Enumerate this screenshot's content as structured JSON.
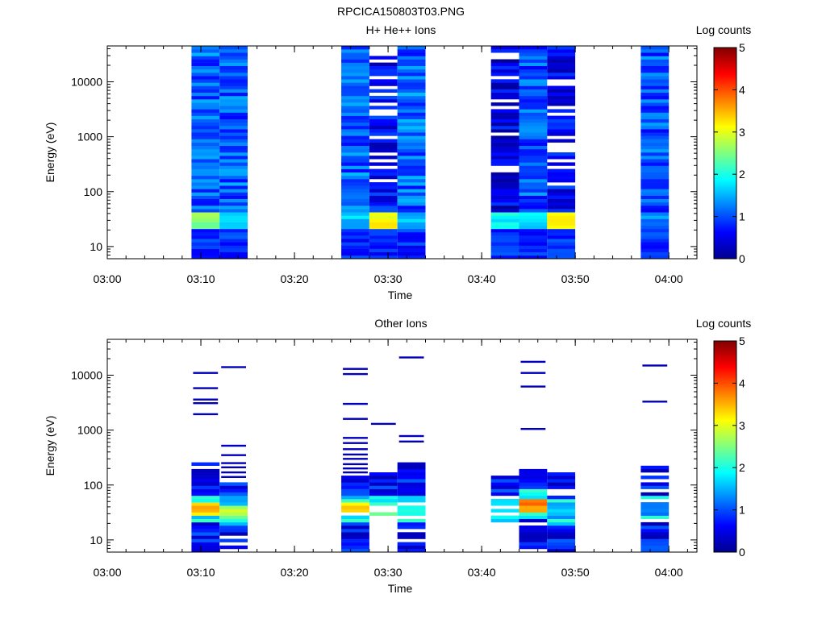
{
  "figure_title": "RPCICA150803T03.PNG",
  "chart_data": [
    {
      "type": "heatmap",
      "title": "H+ He++ Ions",
      "xlabel": "Time",
      "ylabel": "Energy (eV)",
      "x_ticks": [
        "03:00",
        "03:10",
        "03:20",
        "03:30",
        "03:40",
        "03:50",
        "04:00"
      ],
      "y_ticks": [
        "10",
        "100",
        "1000",
        "10000"
      ],
      "y_scale": "log",
      "ylim": [
        6,
        45000
      ],
      "xlim": [
        "03:00",
        "04:03"
      ],
      "colorbar": {
        "label": "Log counts",
        "range": [
          0,
          5
        ],
        "ticks": [
          "0",
          "1",
          "2",
          "3",
          "4",
          "5"
        ]
      },
      "columns": [
        {
          "start": "03:09",
          "end": "03:12",
          "profile": "bright_low",
          "low_peak": 2.6,
          "gaps": 0,
          "seed": 11,
          "base": 1.1
        },
        {
          "start": "03:12",
          "end": "03:15",
          "profile": "bright_low",
          "low_peak": 1.6,
          "gaps": 0,
          "seed": 12,
          "base": 1.1
        },
        {
          "start": "03:25",
          "end": "03:28",
          "profile": "bright_low",
          "low_peak": 1.6,
          "gaps": 0,
          "seed": 13,
          "base": 1.1
        },
        {
          "start": "03:28",
          "end": "03:31",
          "profile": "bright_low",
          "low_peak": 3.2,
          "gaps": 12,
          "seed": 14,
          "base": 0.6
        },
        {
          "start": "03:31",
          "end": "03:34",
          "profile": "bright_low",
          "low_peak": 1.6,
          "gaps": 0,
          "seed": 15,
          "base": 1.1
        },
        {
          "start": "03:41",
          "end": "03:44",
          "profile": "bright_low",
          "low_peak": 1.9,
          "gaps": 9,
          "seed": 16,
          "base": 0.45
        },
        {
          "start": "03:44",
          "end": "03:47",
          "profile": "bright_low",
          "low_peak": 1.8,
          "gaps": 0,
          "seed": 17,
          "base": 1.0
        },
        {
          "start": "03:47",
          "end": "03:50",
          "profile": "bright_low",
          "low_peak": 3.1,
          "gaps": 10,
          "seed": 18,
          "base": 0.6
        },
        {
          "start": "03:57",
          "end": "04:00",
          "profile": "bright_low",
          "low_peak": 1.3,
          "gaps": 0,
          "seed": 19,
          "base": 1.0
        }
      ]
    },
    {
      "type": "heatmap",
      "title": "Other Ions",
      "xlabel": "Time",
      "ylabel": "Energy (eV)",
      "x_ticks": [
        "03:00",
        "03:10",
        "03:20",
        "03:30",
        "03:40",
        "03:50",
        "04:00"
      ],
      "y_ticks": [
        "10",
        "100",
        "1000",
        "10000"
      ],
      "y_scale": "log",
      "ylim": [
        6,
        45000
      ],
      "xlim": [
        "03:00",
        "04:03"
      ],
      "colorbar": {
        "label": "Log counts",
        "range": [
          0,
          5
        ],
        "ticks": [
          "0",
          "1",
          "2",
          "3",
          "4",
          "5"
        ]
      },
      "columns": [
        {
          "start": "03:09",
          "end": "03:12",
          "fill_top": 260,
          "fill_bottom": 6,
          "peak": 3.7,
          "peak_e": 38,
          "sparse": [
            1950,
            3100,
            3600,
            5800,
            11000
          ],
          "seed": 21
        },
        {
          "start": "03:12",
          "end": "03:15",
          "fill_top": 120,
          "fill_bottom": 6,
          "peak": 3.0,
          "peak_e": 34,
          "sparse": [
            140,
            170,
            210,
            250,
            350,
            520,
            14000
          ],
          "seed": 22
        },
        {
          "start": "03:25",
          "end": "03:28",
          "fill_top": 140,
          "fill_bottom": 6,
          "peak": 3.4,
          "peak_e": 38,
          "sparse": [
            170,
            200,
            240,
            300,
            360,
            450,
            580,
            720,
            1600,
            3000,
            10500,
            13000
          ],
          "seed": 23
        },
        {
          "start": "03:28",
          "end": "03:31",
          "fill_top": 160,
          "fill_bottom": 28,
          "peak": 2.7,
          "peak_e": 36,
          "sparse": [
            1300
          ],
          "seed": 24
        },
        {
          "start": "03:31",
          "end": "03:34",
          "fill_top": 260,
          "fill_bottom": 6,
          "peak": 2.2,
          "peak_e": 36,
          "sparse": [
            620,
            780,
            21000
          ],
          "seed": 25
        },
        {
          "start": "03:41",
          "end": "03:44",
          "fill_top": 140,
          "fill_bottom": 20,
          "peak": 2.1,
          "peak_e": 30,
          "sparse": [],
          "seed": 26
        },
        {
          "start": "03:44",
          "end": "03:47",
          "fill_top": 190,
          "fill_bottom": 6,
          "peak": 3.9,
          "peak_e": 45,
          "sparse": [
            1050,
            6200,
            11000,
            17500
          ],
          "seed": 27
        },
        {
          "start": "03:47",
          "end": "03:50",
          "fill_top": 190,
          "fill_bottom": 6,
          "peak": 1.8,
          "peak_e": 32,
          "sparse": [],
          "seed": 28
        },
        {
          "start": "03:57",
          "end": "04:00",
          "fill_top": 230,
          "fill_bottom": 6,
          "peak": 1.5,
          "peak_e": 36,
          "sparse": [
            3300,
            15000
          ],
          "seed": 29
        }
      ]
    }
  ]
}
